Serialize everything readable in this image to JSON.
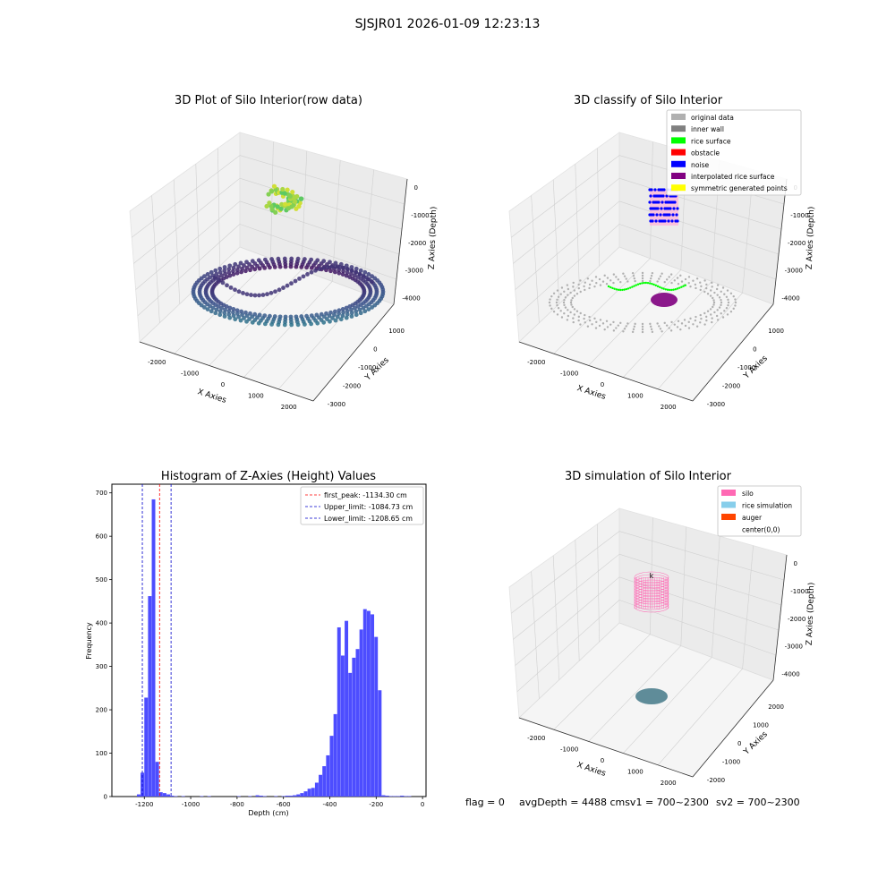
{
  "figure": {
    "suptitle": "SJSJR01 2026-01-09 12:23:13",
    "status": {
      "flag": "flag = 0",
      "avg": "avgDepth = 4488 cmsv1 = 700~2300",
      "sv2": "sv2 = 700~2300"
    }
  },
  "colors": {
    "hist_bar": "#4d4dff",
    "peak_line": "#ff0000",
    "limit_line": "#0000cc",
    "pane": "#f2f2f2",
    "grid": "#d0d0d0",
    "silo": "#ff69b4",
    "rice_sim": "#87ceeb",
    "auger": "#ff4500",
    "disk_sim": "#5f8c99"
  },
  "chart_data": [
    {
      "type": "scatter",
      "title": "3D Plot of Silo Interior(row data)",
      "xlabel": "X Axies",
      "ylabel": "Y Axies",
      "zlabel": "Z Axies (Depth)",
      "x_ticks": [
        "-2000",
        "-1000",
        "0",
        "1000",
        "2000"
      ],
      "y_ticks": [
        "1000",
        "0",
        "-1000",
        "-2000",
        "-3000"
      ],
      "z_ticks": [
        "0",
        "-1000",
        "-2000",
        "-3000",
        "-4000"
      ],
      "colormap": "viridis",
      "clusters": [
        {
          "name": "upper cluster",
          "z_range": [
            -1500,
            -200
          ],
          "xy_extent": [
            -400,
            400
          ]
        },
        {
          "name": "lower ring",
          "z_range": [
            -4500,
            -3800
          ],
          "xy_extent": [
            -2300,
            2300
          ]
        }
      ]
    },
    {
      "type": "scatter",
      "title": "3D classify of Silo Interior",
      "xlabel": "X Axies",
      "ylabel": "Y Axies",
      "zlabel": "Z Axies (Depth)",
      "x_ticks": [
        "-2000",
        "-1000",
        "0",
        "1000",
        "2000"
      ],
      "y_ticks": [
        "1000",
        "0",
        "-1000",
        "-2000",
        "-3000"
      ],
      "z_ticks": [
        "0",
        "-1000",
        "-2000",
        "-3000",
        "-4000"
      ],
      "legend": [
        {
          "label": "original data",
          "color": "#b0b0b0"
        },
        {
          "label": "inner wall",
          "color": "#808080"
        },
        {
          "label": "rice surface",
          "color": "#00ff00"
        },
        {
          "label": "obstacle",
          "color": "#ff0000"
        },
        {
          "label": "noise",
          "color": "#0000ff"
        },
        {
          "label": "interpolated rice surface",
          "color": "#800080"
        },
        {
          "label": "symmetric generated points",
          "color": "#ffff00"
        }
      ],
      "legend_position": "top-right"
    },
    {
      "type": "bar",
      "title": "Histogram of Z-Axies (Height) Values",
      "xlabel": "Depth (cm)",
      "ylabel": "Frequency",
      "xlim": [
        -1340,
        15
      ],
      "ylim": [
        0,
        720
      ],
      "x_ticks": [
        -1200,
        -1000,
        -800,
        -600,
        -400,
        -200,
        0
      ],
      "y_ticks": [
        0,
        100,
        200,
        300,
        400,
        500,
        600,
        700
      ],
      "bin_width": 16,
      "bins": [
        [
          -1232,
          5
        ],
        [
          -1216,
          55
        ],
        [
          -1200,
          228
        ],
        [
          -1184,
          462
        ],
        [
          -1168,
          685
        ],
        [
          -1152,
          80
        ],
        [
          -1136,
          10
        ],
        [
          -1120,
          8
        ],
        [
          -1104,
          5
        ],
        [
          -1088,
          2
        ],
        [
          -1072,
          1
        ],
        [
          -1040,
          1
        ],
        [
          -960,
          1
        ],
        [
          -928,
          1
        ],
        [
          -800,
          1
        ],
        [
          -752,
          1
        ],
        [
          -720,
          3
        ],
        [
          -704,
          2
        ],
        [
          -688,
          1
        ],
        [
          -640,
          1
        ],
        [
          -608,
          1
        ],
        [
          -592,
          2
        ],
        [
          -576,
          2
        ],
        [
          -560,
          3
        ],
        [
          -544,
          5
        ],
        [
          -528,
          8
        ],
        [
          -512,
          12
        ],
        [
          -496,
          18
        ],
        [
          -480,
          20
        ],
        [
          -464,
          32
        ],
        [
          -448,
          50
        ],
        [
          -432,
          70
        ],
        [
          -416,
          95
        ],
        [
          -400,
          140
        ],
        [
          -384,
          190
        ],
        [
          -368,
          390
        ],
        [
          -352,
          325
        ],
        [
          -336,
          405
        ],
        [
          -320,
          285
        ],
        [
          -304,
          320
        ],
        [
          -288,
          340
        ],
        [
          -272,
          385
        ],
        [
          -256,
          432
        ],
        [
          -240,
          428
        ],
        [
          -224,
          420
        ],
        [
          -208,
          368
        ],
        [
          -192,
          245
        ],
        [
          -176,
          3
        ],
        [
          -160,
          2
        ],
        [
          -144,
          1
        ],
        [
          -128,
          1
        ],
        [
          -112,
          1
        ],
        [
          -96,
          2
        ],
        [
          -80,
          1
        ],
        [
          -64,
          1
        ]
      ],
      "vlines": [
        {
          "x": -1134.3,
          "style": "peak",
          "label": "first_peak: -1134.30 cm"
        },
        {
          "x": -1084.73,
          "style": "limit",
          "label": "Upper_limit: -1084.73 cm"
        },
        {
          "x": -1208.65,
          "style": "limit",
          "label": "Lower_limit: -1208.65 cm"
        }
      ],
      "legend_position": "top-right"
    },
    {
      "type": "scatter",
      "title": "3D simulation of Silo Interior",
      "xlabel": "X Axies",
      "ylabel": "Y Axies",
      "zlabel": "Z Axies (Depth)",
      "x_ticks": [
        "-2000",
        "-1000",
        "0",
        "1000",
        "2000"
      ],
      "y_ticks": [
        "2000",
        "1000",
        "0",
        "-1000",
        "-2000"
      ],
      "z_ticks": [
        "0",
        "-1000",
        "-2000",
        "-3000",
        "-4000"
      ],
      "legend": [
        {
          "label": "silo",
          "color": "#ff69b4"
        },
        {
          "label": "rice simulation",
          "color": "#87ceeb"
        },
        {
          "label": "auger",
          "color": "#ff4500"
        },
        {
          "label": "center(0,0)",
          "color": ""
        }
      ],
      "legend_position": "top-right"
    }
  ]
}
